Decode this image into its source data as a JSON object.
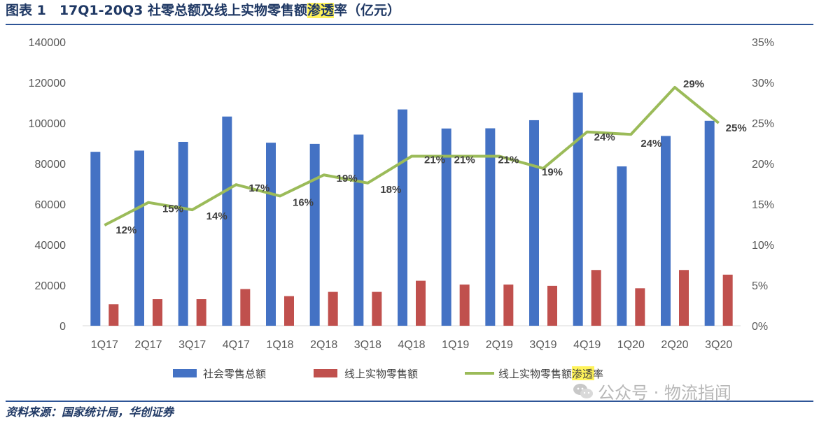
{
  "title": {
    "prefix": "图表 1　17Q1-20Q3 社零总额及线上实物零售额",
    "highlight": "渗透",
    "suffix": "率（亿元）"
  },
  "source": "资料来源：国家统计局，华创证券",
  "watermark": "公众号 · 物流指闻",
  "chart_data": {
    "type": "bar+line",
    "categories": [
      "1Q17",
      "2Q17",
      "3Q17",
      "4Q17",
      "1Q18",
      "2Q18",
      "3Q18",
      "4Q18",
      "1Q19",
      "2Q19",
      "3Q19",
      "4Q19",
      "1Q20",
      "2Q20",
      "3Q20"
    ],
    "series": [
      {
        "name": "社会零售总额",
        "type": "bar",
        "axis": "left",
        "color": "#4472c4",
        "values": [
          85800,
          86400,
          90700,
          103200,
          90300,
          89700,
          94300,
          106700,
          97300,
          97400,
          101400,
          115000,
          78600,
          93600,
          101100
        ]
      },
      {
        "name": "线上实物零售额",
        "type": "bar",
        "axis": "right-left-scale",
        "color": "#c0504d",
        "values": [
          10600,
          13100,
          13100,
          18100,
          14600,
          16700,
          16700,
          22200,
          20300,
          20300,
          19700,
          27500,
          18500,
          27500,
          25200
        ]
      },
      {
        "name": "线上实物零售额渗透率",
        "type": "line",
        "axis": "right",
        "color": "#9bbb59",
        "values": [
          12.4,
          15.2,
          14.3,
          17.4,
          16.0,
          18.6,
          17.6,
          20.9,
          20.9,
          20.9,
          19.4,
          23.9,
          23.6,
          29.4,
          25.0
        ],
        "labels": [
          "12%",
          "15%",
          "14%",
          "17%",
          "16%",
          "19%",
          "18%",
          "21%",
          "21%",
          "21%",
          "19%",
          "24%",
          "24%",
          "29%",
          "25%"
        ]
      }
    ],
    "y_left": {
      "min": 0,
      "max": 140000,
      "step": 20000,
      "ticks": [
        "0",
        "20000",
        "40000",
        "60000",
        "80000",
        "100000",
        "120000",
        "140000"
      ]
    },
    "y_right": {
      "min": 0,
      "max": 35,
      "step": 5,
      "ticks": [
        "0%",
        "5%",
        "10%",
        "15%",
        "20%",
        "25%",
        "30%",
        "35%"
      ]
    },
    "legend": {
      "position": "bottom",
      "items": [
        {
          "label": "社会零售总额",
          "color": "#4472c4",
          "kind": "bar"
        },
        {
          "label": "线上实物零售额",
          "color": "#c0504d",
          "kind": "bar"
        },
        {
          "label_prefix": "线上实物零售额",
          "label_highlight": "渗透",
          "label_suffix": "率",
          "color": "#9bbb59",
          "kind": "line"
        }
      ]
    },
    "grid": false
  }
}
